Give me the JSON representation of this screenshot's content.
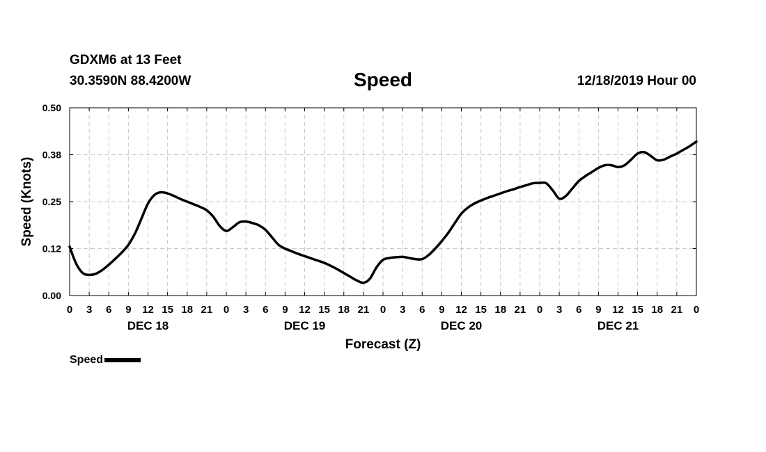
{
  "header": {
    "station": "GDXM6 at 13 Feet",
    "coords": "30.3590N 88.4200W",
    "title": "Speed",
    "run": "12/18/2019 Hour 00"
  },
  "legend": {
    "label": "Speed"
  },
  "colors": {
    "line": "#000000",
    "grid": "#c8c8c8",
    "axis": "#000000"
  },
  "chart_data": {
    "type": "line",
    "title": "Speed",
    "xlabel": "Forecast (Z)",
    "ylabel": "Speed (Knots)",
    "xlim": [
      0,
      96
    ],
    "ylim": [
      0,
      0.5
    ],
    "grid": true,
    "y_ticks": [
      {
        "value": 0.0,
        "label": "0.00"
      },
      {
        "value": 0.125,
        "label": "0.12"
      },
      {
        "value": 0.25,
        "label": "0.25"
      },
      {
        "value": 0.375,
        "label": "0.38"
      },
      {
        "value": 0.5,
        "label": "0.50"
      }
    ],
    "x_ticks": [
      {
        "hour": 0,
        "label": "0"
      },
      {
        "hour": 3,
        "label": "3"
      },
      {
        "hour": 6,
        "label": "6"
      },
      {
        "hour": 9,
        "label": "9"
      },
      {
        "hour": 12,
        "label": "12"
      },
      {
        "hour": 15,
        "label": "15"
      },
      {
        "hour": 18,
        "label": "18"
      },
      {
        "hour": 21,
        "label": "21"
      },
      {
        "hour": 24,
        "label": "0"
      },
      {
        "hour": 27,
        "label": "3"
      },
      {
        "hour": 30,
        "label": "6"
      },
      {
        "hour": 33,
        "label": "9"
      },
      {
        "hour": 36,
        "label": "12"
      },
      {
        "hour": 39,
        "label": "15"
      },
      {
        "hour": 42,
        "label": "18"
      },
      {
        "hour": 45,
        "label": "21"
      },
      {
        "hour": 48,
        "label": "0"
      },
      {
        "hour": 51,
        "label": "3"
      },
      {
        "hour": 54,
        "label": "6"
      },
      {
        "hour": 57,
        "label": "9"
      },
      {
        "hour": 60,
        "label": "12"
      },
      {
        "hour": 63,
        "label": "15"
      },
      {
        "hour": 66,
        "label": "18"
      },
      {
        "hour": 69,
        "label": "21"
      },
      {
        "hour": 72,
        "label": "0"
      },
      {
        "hour": 75,
        "label": "3"
      },
      {
        "hour": 78,
        "label": "6"
      },
      {
        "hour": 81,
        "label": "9"
      },
      {
        "hour": 84,
        "label": "12"
      },
      {
        "hour": 87,
        "label": "15"
      },
      {
        "hour": 90,
        "label": "18"
      },
      {
        "hour": 93,
        "label": "21"
      },
      {
        "hour": 96,
        "label": "0"
      }
    ],
    "day_labels": [
      {
        "hour": 12,
        "label": "DEC 18"
      },
      {
        "hour": 36,
        "label": "DEC 19"
      },
      {
        "hour": 60,
        "label": "DEC 20"
      },
      {
        "hour": 84,
        "label": "DEC 21"
      }
    ],
    "series": [
      {
        "name": "Speed",
        "x": [
          0,
          1,
          2,
          3,
          4,
          5,
          6,
          7,
          8,
          9,
          10,
          11,
          12,
          13,
          14,
          15,
          16,
          17,
          18,
          19,
          20,
          21,
          22,
          23,
          24,
          25,
          26,
          27,
          28,
          29,
          30,
          31,
          32,
          33,
          34,
          35,
          36,
          37,
          38,
          39,
          40,
          41,
          42,
          43,
          44,
          45,
          46,
          47,
          48,
          49,
          50,
          51,
          52,
          53,
          54,
          55,
          56,
          57,
          58,
          59,
          60,
          61,
          62,
          63,
          64,
          65,
          66,
          67,
          68,
          69,
          70,
          71,
          72,
          73,
          74,
          75,
          76,
          77,
          78,
          79,
          80,
          81,
          82,
          83,
          84,
          85,
          86,
          87,
          88,
          89,
          90,
          91,
          92,
          93,
          94,
          95,
          96
        ],
        "values": [
          0.13,
          0.085,
          0.06,
          0.055,
          0.058,
          0.068,
          0.082,
          0.098,
          0.115,
          0.135,
          0.165,
          0.205,
          0.245,
          0.268,
          0.275,
          0.272,
          0.265,
          0.257,
          0.25,
          0.243,
          0.236,
          0.227,
          0.21,
          0.185,
          0.172,
          0.182,
          0.195,
          0.197,
          0.193,
          0.187,
          0.175,
          0.155,
          0.135,
          0.125,
          0.118,
          0.111,
          0.105,
          0.099,
          0.093,
          0.087,
          0.079,
          0.07,
          0.06,
          0.05,
          0.04,
          0.034,
          0.045,
          0.075,
          0.095,
          0.1,
          0.102,
          0.103,
          0.1,
          0.097,
          0.097,
          0.108,
          0.125,
          0.145,
          0.167,
          0.193,
          0.218,
          0.234,
          0.245,
          0.253,
          0.26,
          0.266,
          0.272,
          0.278,
          0.283,
          0.289,
          0.294,
          0.299,
          0.3,
          0.299,
          0.28,
          0.258,
          0.265,
          0.285,
          0.305,
          0.318,
          0.329,
          0.34,
          0.347,
          0.347,
          0.342,
          0.347,
          0.362,
          0.378,
          0.382,
          0.372,
          0.36,
          0.362,
          0.37,
          0.378,
          0.388,
          0.398,
          0.41
        ]
      }
    ]
  }
}
